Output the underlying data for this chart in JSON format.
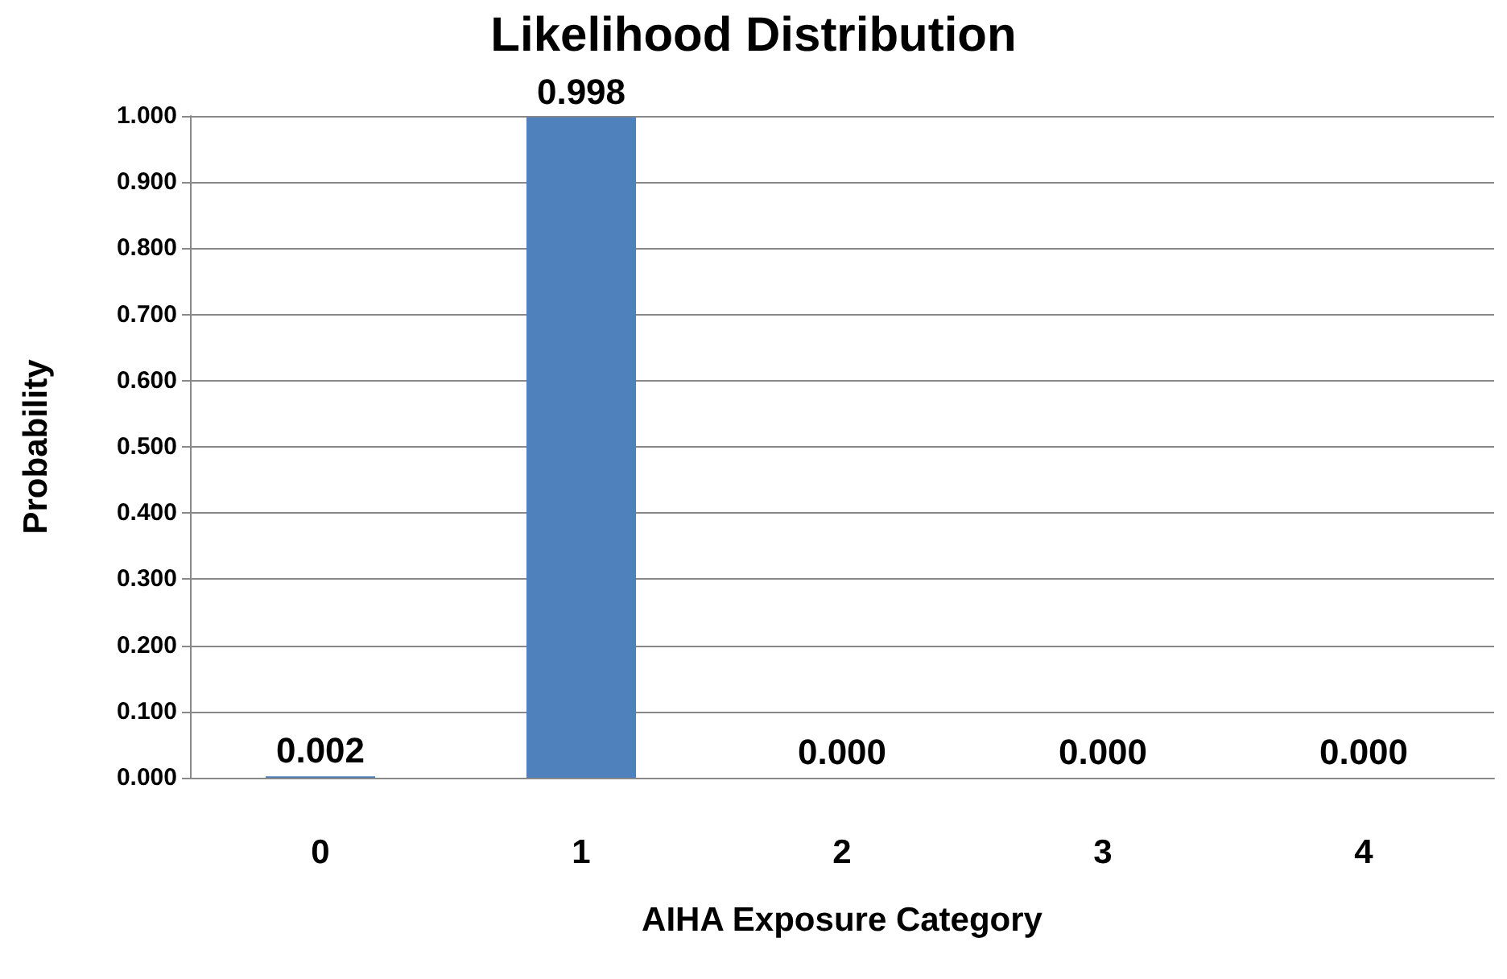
{
  "chart_data": {
    "type": "bar",
    "title": "Likelihood Distribution",
    "xlabel": "AIHA Exposure Category",
    "ylabel": "Probability",
    "categories": [
      "0",
      "1",
      "2",
      "3",
      "4"
    ],
    "values": [
      0.002,
      0.998,
      0.0,
      0.0,
      0.0
    ],
    "value_labels": [
      "0.002",
      "0.998",
      "0.000",
      "0.000",
      "0.000"
    ],
    "color": "#4f81bd",
    "ylim": [
      0,
      1
    ],
    "yticks": [
      {
        "value": 0,
        "label": "0.000"
      },
      {
        "value": 0.1,
        "label": "0.100"
      },
      {
        "value": 0.2,
        "label": "0.200"
      },
      {
        "value": 0.3,
        "label": "0.300"
      },
      {
        "value": 0.4,
        "label": "0.400"
      },
      {
        "value": 0.5,
        "label": "0.500"
      },
      {
        "value": 0.6,
        "label": "0.600"
      },
      {
        "value": 0.7,
        "label": "0.700"
      },
      {
        "value": 0.8,
        "label": "0.800"
      },
      {
        "value": 0.9,
        "label": "0.900"
      },
      {
        "value": 1,
        "label": "1.000"
      }
    ],
    "grid": "y"
  }
}
